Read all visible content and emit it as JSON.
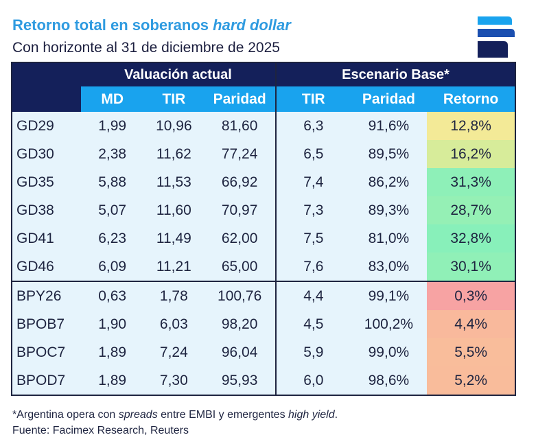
{
  "title": {
    "prefix": "Retorno total en soberanos ",
    "italic": "hard dollar"
  },
  "subtitle": "Con horizonte al 31 de diciembre de 2025",
  "logo_icon": "facimex-logo-icon",
  "table": {
    "group_current": "Valuación actual",
    "group_base": "Escenario Base*",
    "columns": [
      "MD",
      "TIR",
      "Paridad",
      "TIR",
      "Paridad",
      "Retorno"
    ],
    "rows": [
      {
        "code": "GD29",
        "md": "1,99",
        "tir": "10,96",
        "par": "81,60",
        "btir": "6,3",
        "bpar": "91,6%",
        "ret": "12,8%",
        "color": "#f3ea97"
      },
      {
        "code": "GD30",
        "md": "2,38",
        "tir": "11,62",
        "par": "77,24",
        "btir": "6,5",
        "bpar": "89,5%",
        "ret": "16,2%",
        "color": "#d7ec9a"
      },
      {
        "code": "GD35",
        "md": "5,88",
        "tir": "11,53",
        "par": "66,92",
        "btir": "7,4",
        "bpar": "86,2%",
        "ret": "31,3%",
        "color": "#8ef0b8"
      },
      {
        "code": "GD38",
        "md": "5,07",
        "tir": "11,60",
        "par": "70,97",
        "btir": "7,3",
        "bpar": "89,3%",
        "ret": "28,7%",
        "color": "#95f0b5"
      },
      {
        "code": "GD41",
        "md": "6,23",
        "tir": "11,49",
        "par": "62,00",
        "btir": "7,5",
        "bpar": "81,0%",
        "ret": "32,8%",
        "color": "#88f0ba"
      },
      {
        "code": "GD46",
        "md": "6,09",
        "tir": "11,21",
        "par": "65,00",
        "btir": "7,6",
        "bpar": "83,0%",
        "ret": "30,1%",
        "color": "#90f0b7"
      },
      {
        "code": "BPY26",
        "md": "0,63",
        "tir": "1,78",
        "par": "100,76",
        "btir": "4,4",
        "bpar": "99,1%",
        "ret": "0,3%",
        "color": "#f7a3a3"
      },
      {
        "code": "BPOB7",
        "md": "1,90",
        "tir": "6,03",
        "par": "98,20",
        "btir": "4,5",
        "bpar": "100,2%",
        "ret": "4,4%",
        "color": "#f9b99c"
      },
      {
        "code": "BPOC7",
        "md": "1,89",
        "tir": "7,24",
        "par": "96,04",
        "btir": "5,9",
        "bpar": "99,0%",
        "ret": "5,5%",
        "color": "#f9bd9b"
      },
      {
        "code": "BPOD7",
        "md": "1,89",
        "tir": "7,30",
        "par": "95,93",
        "btir": "6,0",
        "bpar": "98,6%",
        "ret": "5,2%",
        "color": "#f9bc9b"
      }
    ]
  },
  "footnote": {
    "a": "*Argentina opera con ",
    "b": "spreads",
    "c": " entre EMBI y emergentes ",
    "d": "high yield",
    "e": "."
  },
  "source": "Fuente: Facimex Research, Reuters"
}
